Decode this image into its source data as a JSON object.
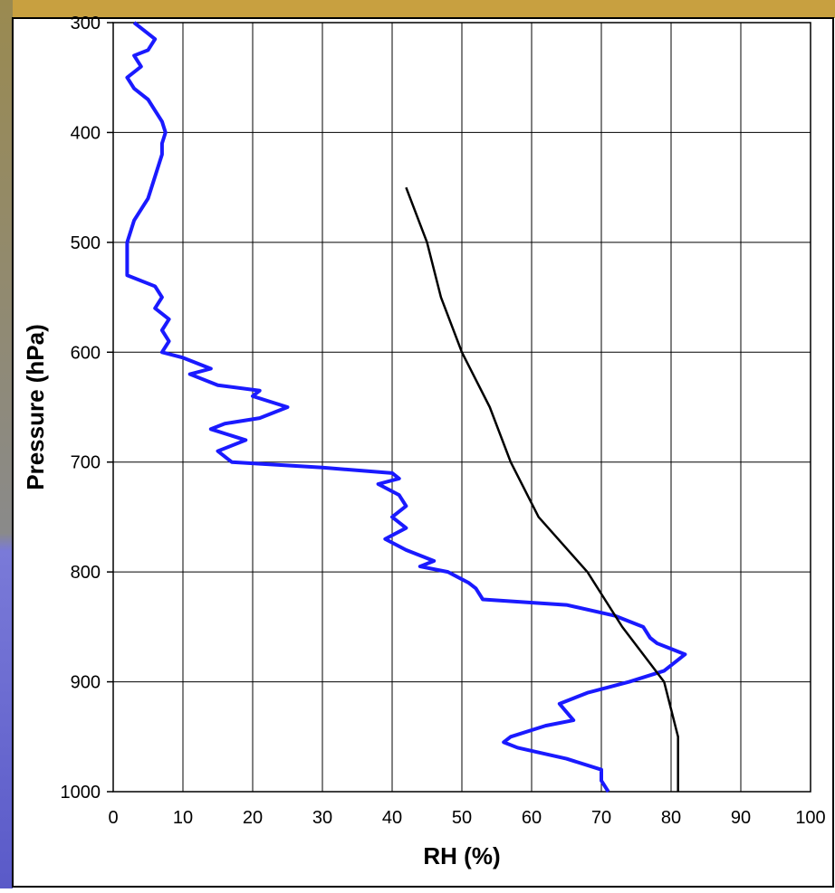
{
  "chart_data": {
    "type": "line",
    "x_label": "RH (%)",
    "y_label": "Pressure (hPa)",
    "xlim": [
      0,
      100
    ],
    "xticks": [
      0,
      10,
      20,
      30,
      40,
      50,
      60,
      70,
      80,
      90,
      100
    ],
    "ylim": [
      300,
      1000
    ],
    "y_inverted": true,
    "yticks": [
      300,
      400,
      500,
      600,
      700,
      800,
      900,
      1000
    ],
    "grid": true,
    "series": [
      {
        "color": "#1a1aff",
        "x": [
          3,
          4,
          6,
          5,
          3,
          4,
          2,
          3,
          5,
          6,
          7,
          7.5,
          7,
          7,
          6.5,
          6,
          5.5,
          5,
          4,
          3,
          2.5,
          2,
          2,
          2,
          2,
          6,
          7,
          6,
          8,
          7,
          8,
          7,
          10,
          14,
          11,
          15,
          21,
          20,
          25,
          21,
          16,
          14,
          19,
          15,
          17,
          30,
          40,
          41,
          38,
          41,
          42,
          40,
          42,
          39,
          42,
          46,
          44,
          48,
          51,
          52,
          53,
          65,
          72,
          76,
          77,
          78,
          80,
          82,
          81,
          79,
          74,
          68,
          64,
          66,
          62,
          57,
          56,
          58,
          65,
          70,
          70,
          71
        ],
        "values": [
          300,
          305,
          315,
          325,
          330,
          340,
          350,
          360,
          370,
          380,
          390,
          400,
          410,
          420,
          430,
          440,
          450,
          460,
          470,
          480,
          490,
          500,
          510,
          520,
          530,
          540,
          550,
          560,
          570,
          580,
          590,
          600,
          605,
          615,
          620,
          630,
          635,
          640,
          650,
          660,
          665,
          670,
          680,
          690,
          700,
          705,
          710,
          715,
          720,
          730,
          740,
          750,
          760,
          770,
          780,
          790,
          795,
          800,
          810,
          815,
          825,
          830,
          840,
          850,
          860,
          865,
          870,
          875,
          880,
          890,
          900,
          910,
          920,
          935,
          940,
          950,
          955,
          960,
          970,
          980,
          990,
          1000
        ]
      },
      {
        "color": "#000000",
        "x": [
          42,
          45,
          47,
          50,
          54,
          57,
          61,
          68,
          73,
          79,
          81,
          81
        ],
        "values": [
          450,
          500,
          550,
          600,
          650,
          700,
          750,
          800,
          850,
          900,
          950,
          1000
        ]
      }
    ]
  }
}
